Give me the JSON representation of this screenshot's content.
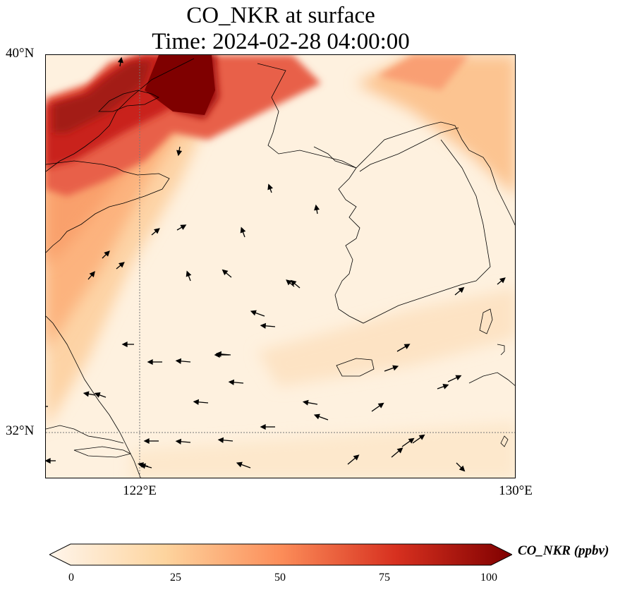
{
  "title": {
    "line1": "CO_NKR at surface",
    "line2": "Time: 2024-02-28 04:00:00"
  },
  "axes": {
    "lat_labels": [
      "40°N",
      "32°N"
    ],
    "lon_labels": [
      "122°E",
      "130°E"
    ],
    "lat_range": [
      31,
      40
    ],
    "lon_range": [
      120,
      130
    ],
    "gridlines": {
      "lat": [
        32
      ],
      "lon": [
        122
      ],
      "style": "dotted"
    }
  },
  "colorbar": {
    "label": "CO_NKR (ppbv)",
    "ticks": [
      "0",
      "25",
      "50",
      "75",
      "100"
    ],
    "range": [
      0,
      100
    ],
    "extend": "both",
    "colormap": [
      "#fff5eb",
      "#fdd49e",
      "#fc8d59",
      "#d7301f",
      "#7f0000"
    ]
  },
  "map": {
    "field": "CO_NKR",
    "level": "surface",
    "wind_vectors": "shown",
    "coastlines": "shown"
  }
}
